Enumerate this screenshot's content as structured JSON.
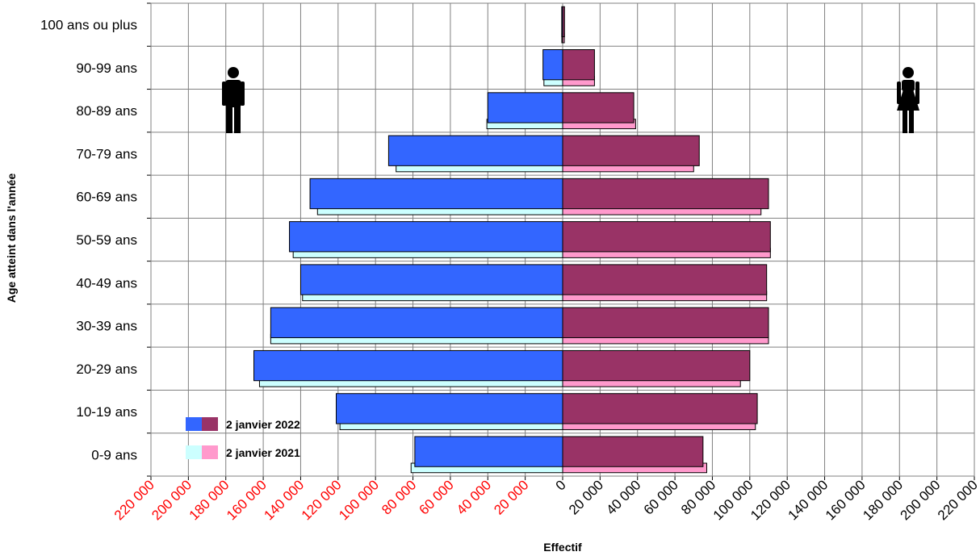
{
  "chart_data": {
    "type": "bar",
    "orientation": "horizontal",
    "layout": "population-pyramid",
    "xlabel": "Effectif",
    "ylabel": "Age atteint dans l'année",
    "xlim": [
      -220000,
      220000
    ],
    "xtick_step": 20000,
    "negative_tick_color": "#ff0000",
    "grid": true,
    "categories": [
      "0-9 ans",
      "10-19 ans",
      "20-29 ans",
      "30-39 ans",
      "40-49 ans",
      "50-59 ans",
      "60-69 ans",
      "70-79 ans",
      "80-89 ans",
      "90-99 ans",
      "100 ans ou plus"
    ],
    "series": [
      {
        "name": "2 janvier 2022",
        "side": "hommes",
        "color": "#3366ff",
        "values": [
          79000,
          121000,
          165000,
          156000,
          140000,
          146000,
          135000,
          93000,
          40000,
          10500,
          500
        ]
      },
      {
        "name": "2 janvier 2021",
        "side": "hommes",
        "color": "#ccffff",
        "values": [
          81000,
          119000,
          162000,
          156000,
          139000,
          144000,
          131000,
          89000,
          40500,
          10000,
          450
        ]
      },
      {
        "name": "2 janvier 2022",
        "side": "femmes",
        "color": "#993366",
        "values": [
          75000,
          104000,
          100000,
          110000,
          109000,
          111000,
          110000,
          73000,
          38000,
          17000,
          1000
        ]
      },
      {
        "name": "2 janvier 2021",
        "side": "femmes",
        "color": "#ff99cc",
        "values": [
          77000,
          103000,
          95000,
          110000,
          109000,
          111000,
          106000,
          70000,
          39000,
          17000,
          900
        ]
      }
    ],
    "legend": {
      "position": "bottom-left",
      "entries": [
        {
          "label": "2 janvier 2022",
          "colors": [
            "#3366ff",
            "#993366"
          ]
        },
        {
          "label": "2 janvier 2021",
          "colors": [
            "#ccffff",
            "#ff99cc"
          ]
        }
      ]
    },
    "icons": [
      "male-figure-icon",
      "female-figure-icon"
    ]
  }
}
